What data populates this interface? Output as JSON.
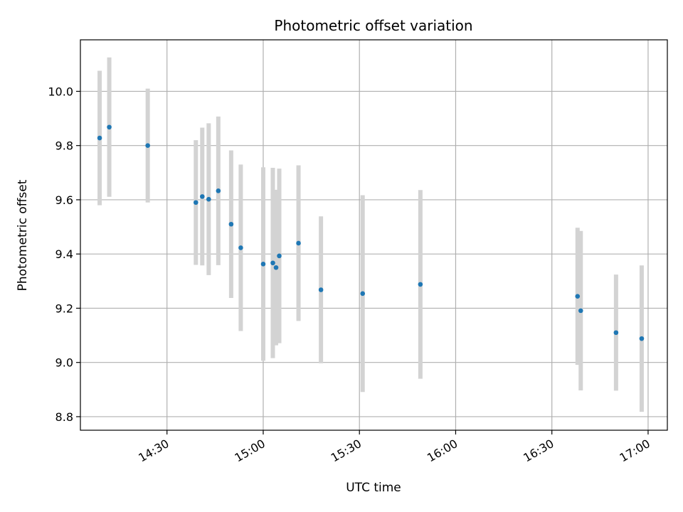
{
  "chart_data": {
    "type": "scatter",
    "title": "Photometric offset variation",
    "xlabel": "UTC time",
    "ylabel": "Photometric offset",
    "x_ticks": [
      "14:30",
      "15:00",
      "15:30",
      "16:00",
      "16:30",
      "17:00"
    ],
    "y_ticks": [
      "8.8",
      "9.0",
      "9.2",
      "9.4",
      "9.6",
      "9.8",
      "10.0"
    ],
    "xlim": [
      "14:03",
      "17:06"
    ],
    "ylim": [
      8.75,
      10.19
    ],
    "grid": true,
    "point_color": "#1f77b4",
    "errorbar_color": "#d3d3d3",
    "points": [
      {
        "x": "14:09",
        "y": 9.828,
        "err": 0.248
      },
      {
        "x": "14:12",
        "y": 9.868,
        "err": 0.257
      },
      {
        "x": "14:24",
        "y": 9.8,
        "err": 0.21
      },
      {
        "x": "14:39",
        "y": 9.59,
        "err": 0.23
      },
      {
        "x": "14:41",
        "y": 9.612,
        "err": 0.254
      },
      {
        "x": "14:43",
        "y": 9.602,
        "err": 0.28
      },
      {
        "x": "14:46",
        "y": 9.633,
        "err": 0.274
      },
      {
        "x": "14:50",
        "y": 9.51,
        "err": 0.272
      },
      {
        "x": "14:53",
        "y": 9.423,
        "err": 0.307
      },
      {
        "x": "15:00",
        "y": 9.363,
        "err": 0.357
      },
      {
        "x": "15:03",
        "y": 9.367,
        "err": 0.351
      },
      {
        "x": "15:04",
        "y": 9.35,
        "err": 0.287
      },
      {
        "x": "15:05",
        "y": 9.393,
        "err": 0.322
      },
      {
        "x": "15:11",
        "y": 9.44,
        "err": 0.287
      },
      {
        "x": "15:18",
        "y": 9.268,
        "err": 0.271
      },
      {
        "x": "15:31",
        "y": 9.254,
        "err": 0.363
      },
      {
        "x": "15:49",
        "y": 9.288,
        "err": 0.348
      },
      {
        "x": "16:38",
        "y": 9.244,
        "err": 0.253
      },
      {
        "x": "16:39",
        "y": 9.191,
        "err": 0.294
      },
      {
        "x": "16:50",
        "y": 9.11,
        "err": 0.214
      },
      {
        "x": "16:58",
        "y": 9.088,
        "err": 0.27
      }
    ]
  }
}
